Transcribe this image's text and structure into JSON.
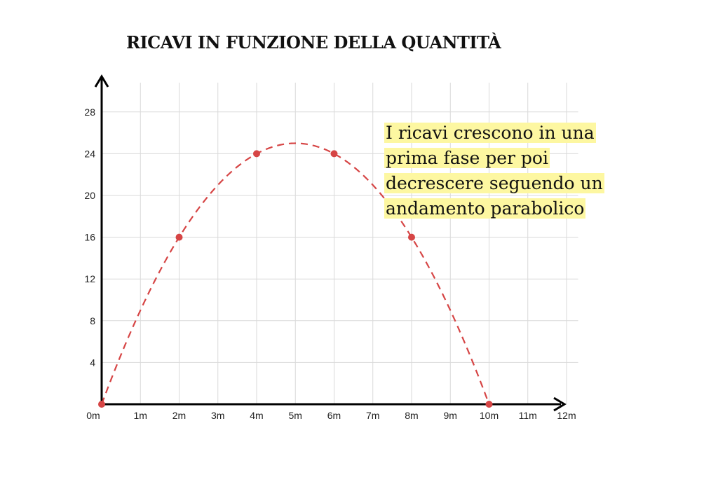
{
  "chart_data": {
    "type": "line",
    "title": "RICAVI IN FUNZIONE DELLA QUANTITÀ",
    "xlabel": "",
    "ylabel": "",
    "x_tick_labels": [
      "0m",
      "1m",
      "2m",
      "3m",
      "4m",
      "5m",
      "6m",
      "7m",
      "8m",
      "9m",
      "10m",
      "11m",
      "12m"
    ],
    "y_tick_labels": [
      "4",
      "8",
      "12",
      "16",
      "20",
      "24",
      "28"
    ],
    "xlim": [
      0,
      12
    ],
    "ylim": [
      0,
      28
    ],
    "grid": true,
    "series": [
      {
        "style": "dashed",
        "color": "#d64545",
        "function": "y = 10x - x^2",
        "points": [
          {
            "x": 0,
            "y": 0
          },
          {
            "x": 2,
            "y": 16
          },
          {
            "x": 4,
            "y": 24
          },
          {
            "x": 6,
            "y": 24
          },
          {
            "x": 8,
            "y": 16
          },
          {
            "x": 10,
            "y": 0
          }
        ]
      }
    ],
    "annotation": "I ricavi crescono in una prima fase per poi decrescere seguendo un andamento parabolico",
    "annotation_highlight_color": "#fdf7a1"
  }
}
